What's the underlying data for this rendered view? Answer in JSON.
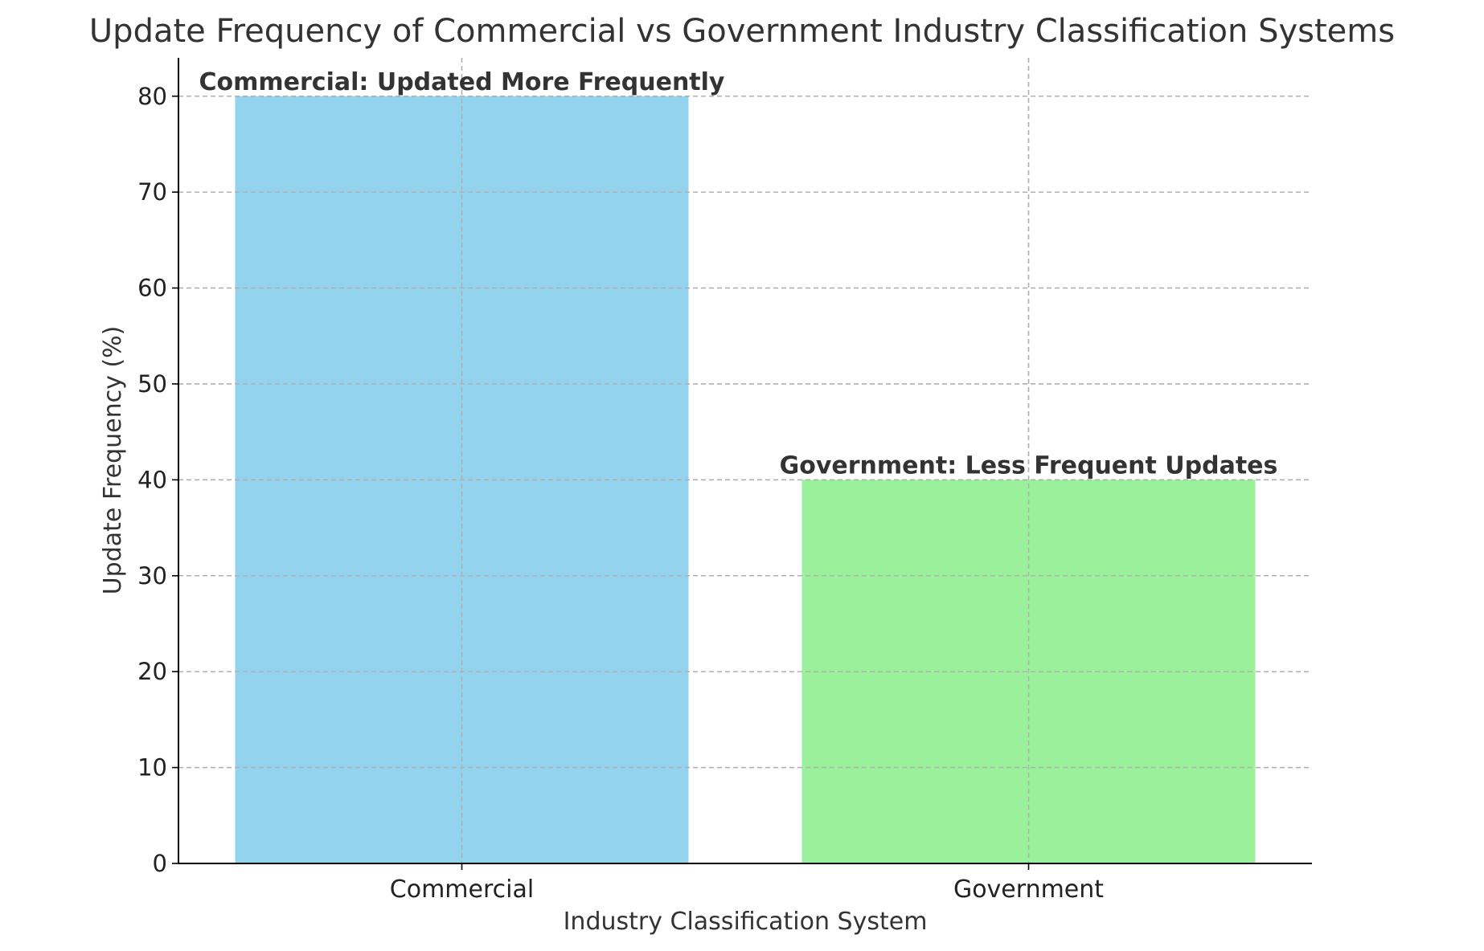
{
  "chart_data": {
    "type": "bar",
    "title": "Update Frequency of Commercial vs Government Industry Classification Systems",
    "xlabel": "Industry Classification System",
    "ylabel": "Update Frequency (%)",
    "categories": [
      "Commercial",
      "Government"
    ],
    "values": [
      80,
      40
    ],
    "colors": [
      "#87CEEB",
      "#90EE90"
    ],
    "annotations": [
      "Commercial: Updated More Frequently",
      "Government: Less Frequent Updates"
    ],
    "ylim": [
      0,
      84
    ],
    "yticks": [
      0,
      10,
      20,
      30,
      40,
      50,
      60,
      70,
      80
    ],
    "grid": true,
    "legend": "none"
  }
}
